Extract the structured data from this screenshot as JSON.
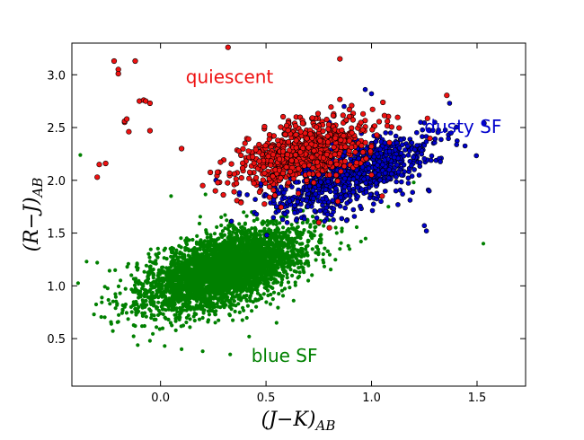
{
  "chart_data": {
    "type": "scatter",
    "title": "",
    "xlabel": "(J−K)",
    "xlabel_sub": "AB",
    "ylabel": "(R−J)",
    "ylabel_sub": "AB",
    "xlim": [
      -0.42,
      1.73
    ],
    "ylim": [
      0.05,
      3.3
    ],
    "xticks": [
      0.0,
      0.5,
      1.0,
      1.5
    ],
    "xtick_labels": [
      "0.0",
      "0.5",
      "1.0",
      "1.5"
    ],
    "yticks": [
      0.5,
      1.0,
      1.5,
      2.0,
      2.5,
      3.0
    ],
    "ytick_labels": [
      "0.5",
      "1.0",
      "1.5",
      "2.0",
      "2.5",
      "3.0"
    ],
    "grid": false,
    "legend": "none",
    "colors": {
      "blue_sf": "#008000",
      "dusty_sf": "#0000cc",
      "quiescent": "#ee1111",
      "edge": "#000000"
    },
    "annotations": [
      {
        "text": "quiescent",
        "x": 0.12,
        "y": 2.92,
        "color": "#ee1111"
      },
      {
        "text": "dusty SF",
        "x": 1.25,
        "y": 2.45,
        "color": "#0000cc"
      },
      {
        "text": "blue SF",
        "x": 0.43,
        "y": 0.28,
        "color": "#008000"
      }
    ],
    "series": [
      {
        "name": "blue SF",
        "color": "#008000",
        "count": 3800,
        "distribution": {
          "center_x": 0.3,
          "center_y": 1.15,
          "slope": 1.05,
          "sigma_major": 0.24,
          "sigma_minor": 0.13
        },
        "x": [
          -0.35,
          -0.3,
          -0.24,
          -0.2,
          -0.12,
          -0.05,
          0.02,
          0.1,
          0.2,
          0.33,
          0.42,
          0.55,
          0.7,
          0.85,
          0.95,
          1.08,
          1.2,
          1.53,
          -0.38,
          0.05
        ],
        "y": [
          1.23,
          1.22,
          0.83,
          0.66,
          0.62,
          0.48,
          0.43,
          0.4,
          0.38,
          0.35,
          0.52,
          0.65,
          1.05,
          1.35,
          1.42,
          1.75,
          1.98,
          1.4,
          2.24,
          1.85
        ]
      },
      {
        "name": "dusty SF",
        "color": "#0000cc",
        "count": 900,
        "distribution": {
          "center_x": 0.9,
          "center_y": 2.05,
          "slope": 1.05,
          "sigma_major": 0.24,
          "sigma_minor": 0.12
        },
        "x": [
          1.37,
          1.3,
          1.25,
          1.26,
          0.97,
          1.0,
          0.87,
          0.8,
          0.55,
          0.6
        ],
        "y": [
          2.73,
          2.55,
          1.57,
          1.52,
          2.86,
          2.82,
          2.7,
          2.55,
          1.75,
          1.6
        ]
      },
      {
        "name": "quiescent",
        "color": "#ee1111",
        "count": 700,
        "distribution": {
          "center_x": 0.68,
          "center_y": 2.27,
          "slope": 1.0,
          "sigma_major": 0.2,
          "sigma_minor": 0.11
        },
        "x": [
          -0.22,
          -0.2,
          -0.2,
          -0.17,
          -0.17,
          -0.16,
          -0.15,
          -0.3,
          -0.29,
          -0.26,
          -0.1,
          -0.08,
          -0.07,
          -0.05,
          -0.05,
          -0.12,
          0.32,
          0.1,
          0.2,
          0.26,
          0.35,
          0.36,
          0.85,
          1.0,
          1.05,
          0.84,
          0.75,
          0.8
        ],
        "y": [
          3.13,
          3.05,
          3.01,
          2.55,
          2.56,
          2.58,
          2.46,
          2.03,
          2.15,
          2.16,
          2.75,
          2.76,
          2.75,
          2.73,
          2.47,
          3.13,
          3.26,
          2.3,
          1.95,
          1.9,
          2.06,
          1.97,
          3.15,
          2.05,
          1.85,
          1.8,
          1.6,
          1.55
        ]
      }
    ]
  }
}
